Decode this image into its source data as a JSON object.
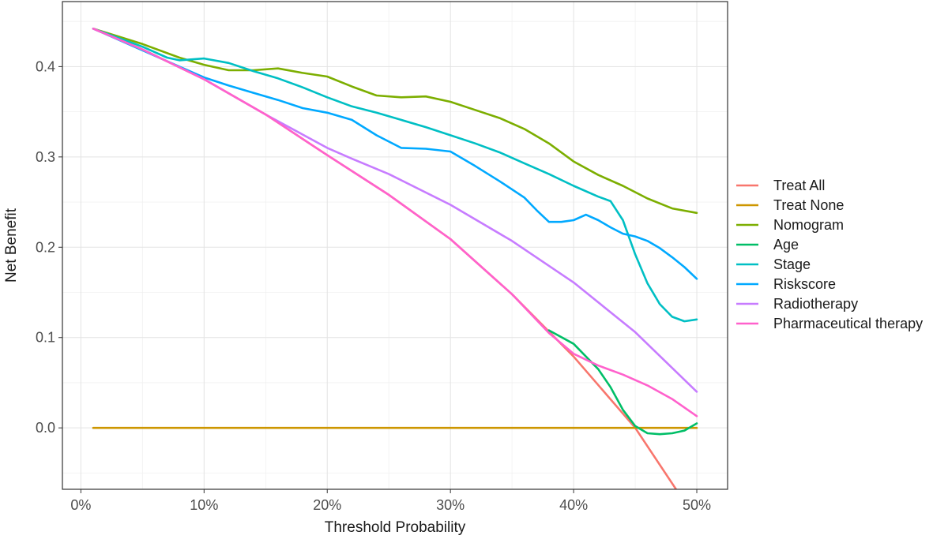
{
  "chart_data": {
    "type": "line",
    "xlabel": "Threshold Probability",
    "ylabel": "Net Benefit",
    "xlim": [
      -0.015,
      0.525
    ],
    "ylim": [
      -0.068,
      0.472
    ],
    "x_ticks": [
      0,
      0.1,
      0.2,
      0.3,
      0.4,
      0.5
    ],
    "x_tick_labels": [
      "0%",
      "10%",
      "20%",
      "30%",
      "40%",
      "50%"
    ],
    "y_ticks": [
      0.0,
      0.1,
      0.2,
      0.3,
      0.4
    ],
    "y_tick_labels": [
      "0.0",
      "0.1",
      "0.2",
      "0.3",
      "0.4"
    ],
    "grid": true,
    "legend_position": "right",
    "series": [
      {
        "name": "Treat All",
        "color": "#F8766D",
        "x": [
          0.01,
          0.05,
          0.1,
          0.15,
          0.2,
          0.25,
          0.3,
          0.35,
          0.4,
          0.45,
          0.49
        ],
        "y": [
          0.442,
          0.419,
          0.386,
          0.347,
          0.302,
          0.258,
          0.209,
          0.148,
          0.079,
          0.0,
          -0.082
        ]
      },
      {
        "name": "Treat None",
        "color": "#CD9600",
        "x": [
          0.01,
          0.5
        ],
        "y": [
          0.0,
          0.0
        ]
      },
      {
        "name": "Nomogram",
        "color": "#7CAE00",
        "x": [
          0.01,
          0.05,
          0.08,
          0.1,
          0.12,
          0.14,
          0.16,
          0.18,
          0.2,
          0.22,
          0.24,
          0.26,
          0.28,
          0.3,
          0.32,
          0.34,
          0.36,
          0.38,
          0.4,
          0.42,
          0.44,
          0.46,
          0.48,
          0.5
        ],
        "y": [
          0.442,
          0.425,
          0.41,
          0.402,
          0.396,
          0.396,
          0.398,
          0.393,
          0.389,
          0.378,
          0.368,
          0.366,
          0.367,
          0.361,
          0.352,
          0.343,
          0.331,
          0.315,
          0.295,
          0.28,
          0.268,
          0.254,
          0.243,
          0.238
        ]
      },
      {
        "name": "Age",
        "color": "#00BE67",
        "x": [
          0.38,
          0.4,
          0.42,
          0.43,
          0.44,
          0.45,
          0.46,
          0.47,
          0.48,
          0.49,
          0.5
        ],
        "y": [
          0.108,
          0.093,
          0.065,
          0.045,
          0.02,
          0.002,
          -0.006,
          -0.007,
          -0.006,
          -0.003,
          0.005
        ]
      },
      {
        "name": "Stage",
        "color": "#00BFC4",
        "x": [
          0.01,
          0.05,
          0.07,
          0.08,
          0.1,
          0.12,
          0.14,
          0.16,
          0.18,
          0.2,
          0.22,
          0.24,
          0.26,
          0.28,
          0.3,
          0.32,
          0.34,
          0.36,
          0.38,
          0.4,
          0.42,
          0.43,
          0.44,
          0.45,
          0.46,
          0.47,
          0.48,
          0.49,
          0.5
        ],
        "y": [
          0.442,
          0.422,
          0.41,
          0.407,
          0.409,
          0.404,
          0.395,
          0.387,
          0.377,
          0.366,
          0.356,
          0.349,
          0.341,
          0.333,
          0.324,
          0.315,
          0.305,
          0.293,
          0.281,
          0.268,
          0.256,
          0.251,
          0.23,
          0.192,
          0.16,
          0.137,
          0.123,
          0.118,
          0.12
        ]
      },
      {
        "name": "Riskscore",
        "color": "#00A9FF",
        "x": [
          0.01,
          0.05,
          0.08,
          0.1,
          0.12,
          0.14,
          0.16,
          0.18,
          0.2,
          0.22,
          0.24,
          0.26,
          0.28,
          0.3,
          0.32,
          0.34,
          0.36,
          0.37,
          0.38,
          0.39,
          0.4,
          0.41,
          0.42,
          0.43,
          0.44,
          0.45,
          0.46,
          0.47,
          0.48,
          0.49,
          0.5
        ],
        "y": [
          0.442,
          0.418,
          0.4,
          0.388,
          0.379,
          0.371,
          0.363,
          0.354,
          0.349,
          0.341,
          0.324,
          0.31,
          0.309,
          0.306,
          0.29,
          0.273,
          0.255,
          0.241,
          0.228,
          0.228,
          0.23,
          0.236,
          0.23,
          0.222,
          0.215,
          0.212,
          0.207,
          0.199,
          0.189,
          0.178,
          0.165
        ]
      },
      {
        "name": "Radiotherapy",
        "color": "#C77CFF",
        "x": [
          0.01,
          0.05,
          0.1,
          0.15,
          0.2,
          0.22,
          0.25,
          0.3,
          0.35,
          0.4,
          0.45,
          0.5
        ],
        "y": [
          0.442,
          0.419,
          0.386,
          0.347,
          0.31,
          0.298,
          0.281,
          0.247,
          0.207,
          0.161,
          0.106,
          0.04
        ]
      },
      {
        "name": "Pharmaceutical therapy",
        "color": "#FF61CC",
        "x": [
          0.01,
          0.05,
          0.1,
          0.15,
          0.2,
          0.25,
          0.3,
          0.35,
          0.38,
          0.4,
          0.42,
          0.44,
          0.46,
          0.48,
          0.5
        ],
        "y": [
          0.442,
          0.419,
          0.386,
          0.347,
          0.302,
          0.258,
          0.209,
          0.148,
          0.105,
          0.082,
          0.069,
          0.059,
          0.047,
          0.032,
          0.013
        ]
      }
    ]
  }
}
